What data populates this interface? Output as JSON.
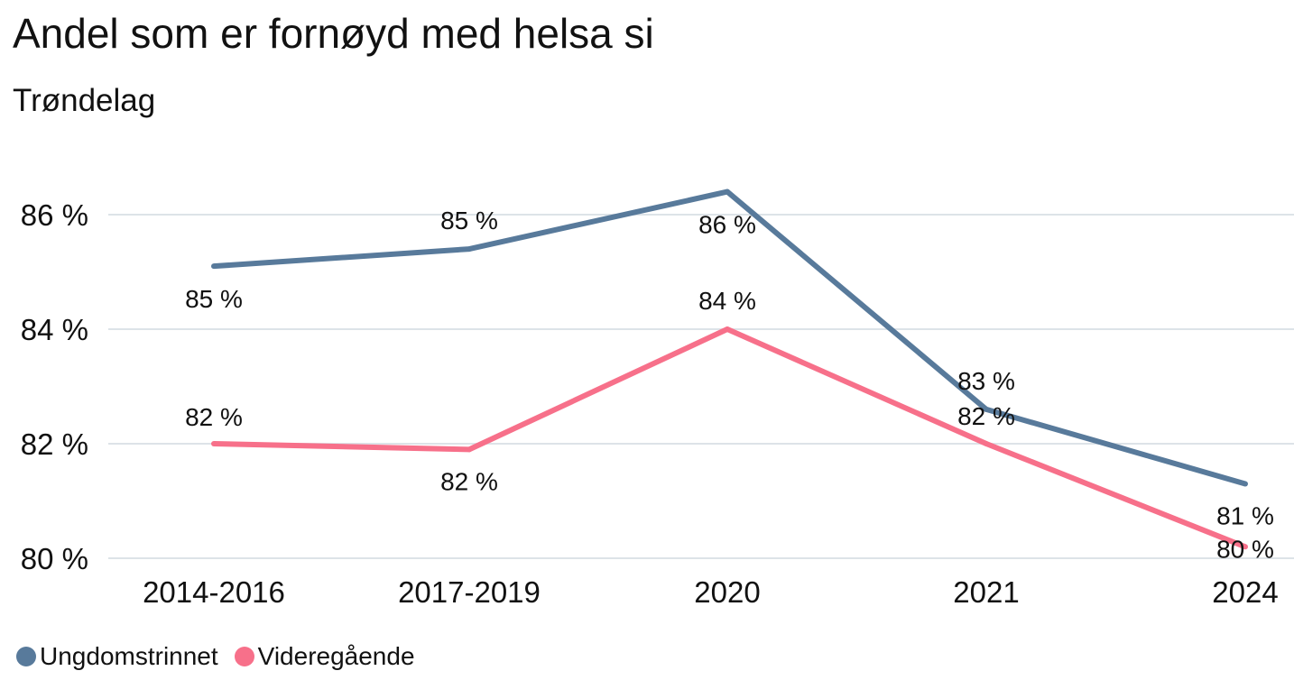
{
  "chart_data": {
    "type": "line",
    "title": "Andel som er fornøyd med helsa si",
    "subtitle": "Trøndelag",
    "categories": [
      "2014-2016",
      "2017-2019",
      "2020",
      "2021",
      "2024"
    ],
    "ylim": [
      80,
      86.6
    ],
    "yticks": [
      80,
      82,
      84,
      86
    ],
    "ytick_labels": [
      "80 %",
      "82 %",
      "84 %",
      "86 %"
    ],
    "grid": true,
    "legend_position": "bottom-left",
    "series": [
      {
        "name": "Ungdomstrinnet",
        "color": "#587a9b",
        "values": [
          85.1,
          85.4,
          86.4,
          82.6,
          81.3
        ],
        "labels": [
          "85 %",
          "85 %",
          "86 %",
          "83 %",
          "81 %"
        ]
      },
      {
        "name": "Videregående",
        "color": "#f7708a",
        "values": [
          82.0,
          81.9,
          84.0,
          82.0,
          80.2
        ],
        "labels": [
          "82 %",
          "82 %",
          "84 %",
          "82 %",
          "80 %"
        ]
      }
    ]
  }
}
